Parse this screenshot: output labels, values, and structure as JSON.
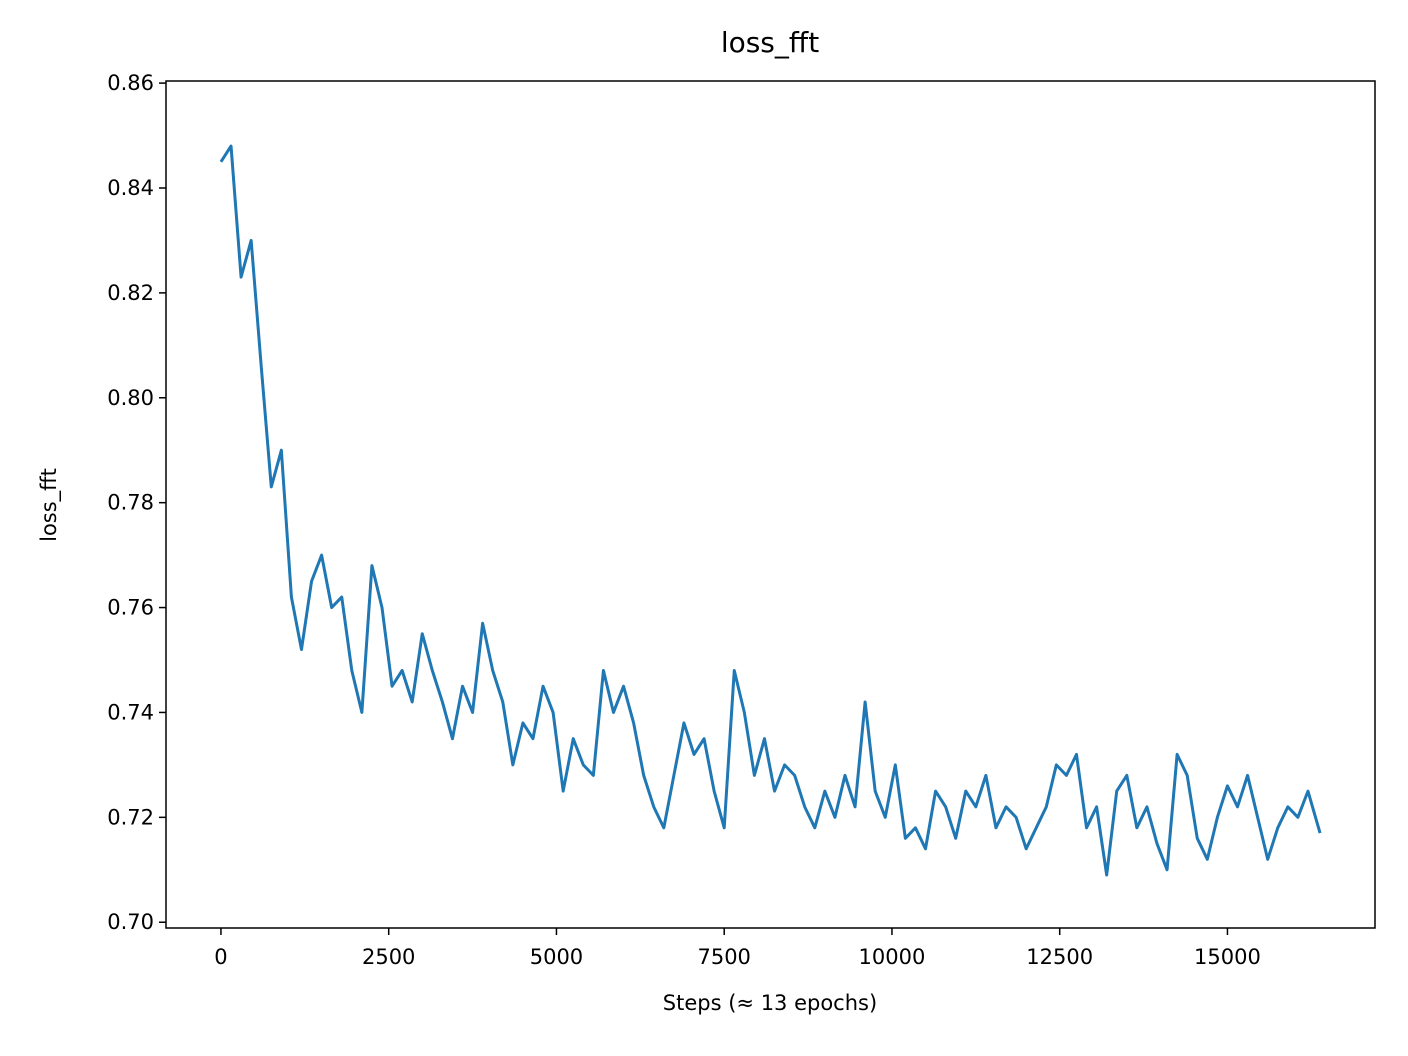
{
  "chart_data": {
    "type": "line",
    "title": "loss_fft",
    "x_label": "Steps (≈ 13 epochs)",
    "y_label": "loss_fft",
    "x": [
      0,
      150,
      300,
      450,
      600,
      750,
      900,
      1050,
      1200,
      1350,
      1500,
      1650,
      1800,
      1950,
      2100,
      2250,
      2400,
      2550,
      2700,
      2850,
      3000,
      3150,
      3300,
      3450,
      3600,
      3750,
      3900,
      4050,
      4200,
      4350,
      4500,
      4650,
      4800,
      4950,
      5100,
      5250,
      5400,
      5550,
      5700,
      5850,
      6000,
      6150,
      6300,
      6450,
      6600,
      6750,
      6900,
      7050,
      7200,
      7350,
      7500,
      7650,
      7800,
      7950,
      8100,
      8250,
      8400,
      8550,
      8700,
      8850,
      9000,
      9150,
      9300,
      9450,
      9600,
      9750,
      9900,
      10050,
      10200,
      10350,
      10500,
      10650,
      10800,
      10950,
      11100,
      11250,
      11400,
      11550,
      11700,
      11850,
      12000,
      12150,
      12300,
      12450,
      12600,
      12750,
      12900,
      13050,
      13200,
      13350,
      13500,
      13650,
      13800,
      13950,
      14100,
      14250,
      14400,
      14550,
      14700,
      14850,
      15000,
      15150,
      15300,
      15450,
      15600,
      15750,
      15900,
      16050,
      16200,
      16380
    ],
    "series": [
      {
        "name": "loss_fft",
        "color": "#1f77b4",
        "values": [
          0.845,
          0.848,
          0.823,
          0.83,
          0.806,
          0.783,
          0.79,
          0.762,
          0.752,
          0.765,
          0.77,
          0.76,
          0.762,
          0.748,
          0.74,
          0.768,
          0.76,
          0.745,
          0.748,
          0.742,
          0.755,
          0.748,
          0.742,
          0.735,
          0.745,
          0.74,
          0.757,
          0.748,
          0.742,
          0.73,
          0.738,
          0.735,
          0.745,
          0.74,
          0.725,
          0.735,
          0.73,
          0.728,
          0.748,
          0.74,
          0.745,
          0.738,
          0.728,
          0.722,
          0.718,
          0.728,
          0.738,
          0.732,
          0.735,
          0.725,
          0.718,
          0.748,
          0.74,
          0.728,
          0.735,
          0.725,
          0.73,
          0.728,
          0.722,
          0.718,
          0.725,
          0.72,
          0.728,
          0.722,
          0.742,
          0.725,
          0.72,
          0.73,
          0.716,
          0.718,
          0.714,
          0.725,
          0.722,
          0.716,
          0.725,
          0.722,
          0.728,
          0.718,
          0.722,
          0.72,
          0.714,
          0.718,
          0.722,
          0.73,
          0.728,
          0.732,
          0.718,
          0.722,
          0.709,
          0.725,
          0.728,
          0.718,
          0.722,
          0.715,
          0.71,
          0.732,
          0.728,
          0.716,
          0.712,
          0.72,
          0.726,
          0.722,
          0.728,
          0.72,
          0.712,
          0.718,
          0.722,
          0.72,
          0.725,
          0.717
        ]
      }
    ],
    "xlim": [
      -819,
      17199
    ],
    "ylim": [
      0.6989,
      0.8604
    ],
    "xticks": [
      0,
      2500,
      5000,
      7500,
      10000,
      12500,
      15000
    ],
    "yticks": [
      {
        "value": 0.7,
        "label": "0.70"
      },
      0.72,
      0.74,
      0.76,
      0.78,
      {
        "value": 0.8,
        "label": "0.80"
      },
      0.82,
      0.84,
      0.86
    ]
  }
}
